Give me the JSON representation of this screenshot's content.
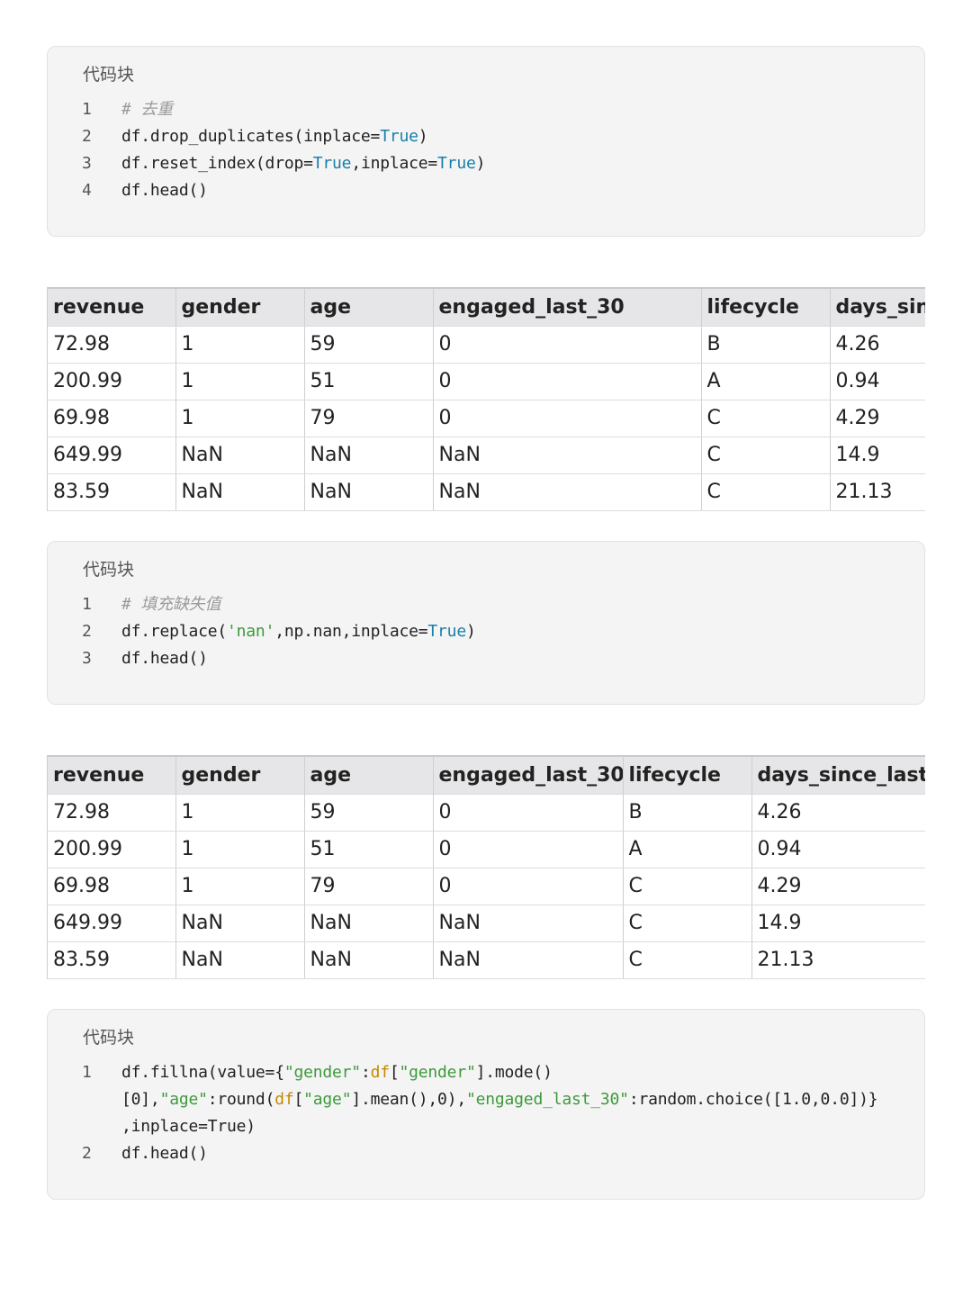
{
  "blocks": [
    {
      "title": "代码块",
      "lines": [
        {
          "num": "1",
          "tokens": [
            {
              "t": "# 去重",
              "c": "cm"
            }
          ]
        },
        {
          "num": "2",
          "tokens": [
            {
              "t": "df.drop_duplicates(inplace=",
              "c": ""
            },
            {
              "t": "True",
              "c": "kw"
            },
            {
              "t": ")",
              "c": ""
            }
          ]
        },
        {
          "num": "3",
          "tokens": [
            {
              "t": "df.reset_index(drop=",
              "c": ""
            },
            {
              "t": "True",
              "c": "kw"
            },
            {
              "t": ",inplace=",
              "c": ""
            },
            {
              "t": "True",
              "c": "kw"
            },
            {
              "t": ")",
              "c": ""
            }
          ]
        },
        {
          "num": "4",
          "tokens": [
            {
              "t": "df.head()",
              "c": ""
            }
          ]
        }
      ]
    },
    {
      "title": "代码块",
      "lines": [
        {
          "num": "1",
          "tokens": [
            {
              "t": "# 填充缺失值",
              "c": "cm"
            }
          ]
        },
        {
          "num": "2",
          "tokens": [
            {
              "t": "df.replace(",
              "c": ""
            },
            {
              "t": "'nan'",
              "c": "str"
            },
            {
              "t": ",np.nan,inplace=",
              "c": ""
            },
            {
              "t": "True",
              "c": "kw"
            },
            {
              "t": ")",
              "c": ""
            }
          ]
        },
        {
          "num": "3",
          "tokens": [
            {
              "t": "df.head()",
              "c": ""
            }
          ]
        }
      ]
    },
    {
      "title": "代码块",
      "lines": [
        {
          "num": "1",
          "tokens": [
            {
              "t": "df.fillna(value={",
              "c": ""
            },
            {
              "t": "\"gender\"",
              "c": "str"
            },
            {
              "t": ":",
              "c": ""
            },
            {
              "t": "df",
              "c": "var"
            },
            {
              "t": "[",
              "c": ""
            },
            {
              "t": "\"gender\"",
              "c": "str"
            },
            {
              "t": "].mode()",
              "c": ""
            }
          ]
        },
        {
          "num": "",
          "cont": true,
          "tokens": [
            {
              "t": "[0],",
              "c": ""
            },
            {
              "t": "\"age\"",
              "c": "str"
            },
            {
              "t": ":round(",
              "c": ""
            },
            {
              "t": "df",
              "c": "var"
            },
            {
              "t": "[",
              "c": ""
            },
            {
              "t": "\"age\"",
              "c": "str"
            },
            {
              "t": "].mean(),0),",
              "c": ""
            },
            {
              "t": "\"engaged_last_30\"",
              "c": "str"
            },
            {
              "t": ":random.choice([1.0,0.0])}",
              "c": ""
            }
          ]
        },
        {
          "num": "",
          "cont": true,
          "tokens": [
            {
              "t": ",inplace=True)",
              "c": ""
            }
          ]
        },
        {
          "num": "2",
          "tokens": [
            {
              "t": "df.head()",
              "c": ""
            }
          ]
        }
      ]
    }
  ],
  "tables": [
    {
      "columns": [
        "revenue",
        "gender",
        "age",
        "engaged_last_30",
        "lifecycle",
        "days_since_last_order"
      ],
      "rows": [
        [
          "72.98",
          "1",
          "59",
          "0",
          "B",
          "4.26"
        ],
        [
          "200.99",
          "1",
          "51",
          "0",
          "A",
          "0.94"
        ],
        [
          "69.98",
          "1",
          "79",
          "0",
          "C",
          "4.29"
        ],
        [
          "649.99",
          "NaN",
          "NaN",
          "NaN",
          "C",
          "14.9"
        ],
        [
          "83.59",
          "NaN",
          "NaN",
          "NaN",
          "C",
          "21.13"
        ]
      ]
    },
    {
      "columns": [
        "revenue",
        "gender",
        "age",
        "engaged_last_30",
        "lifecycle",
        "days_since_last_order"
      ],
      "rows": [
        [
          "72.98",
          "1",
          "59",
          "0",
          "B",
          "4.26"
        ],
        [
          "200.99",
          "1",
          "51",
          "0",
          "A",
          "0.94"
        ],
        [
          "69.98",
          "1",
          "79",
          "0",
          "C",
          "4.29"
        ],
        [
          "649.99",
          "NaN",
          "NaN",
          "NaN",
          "C",
          "14.9"
        ],
        [
          "83.59",
          "NaN",
          "NaN",
          "NaN",
          "C",
          "21.13"
        ]
      ]
    }
  ]
}
